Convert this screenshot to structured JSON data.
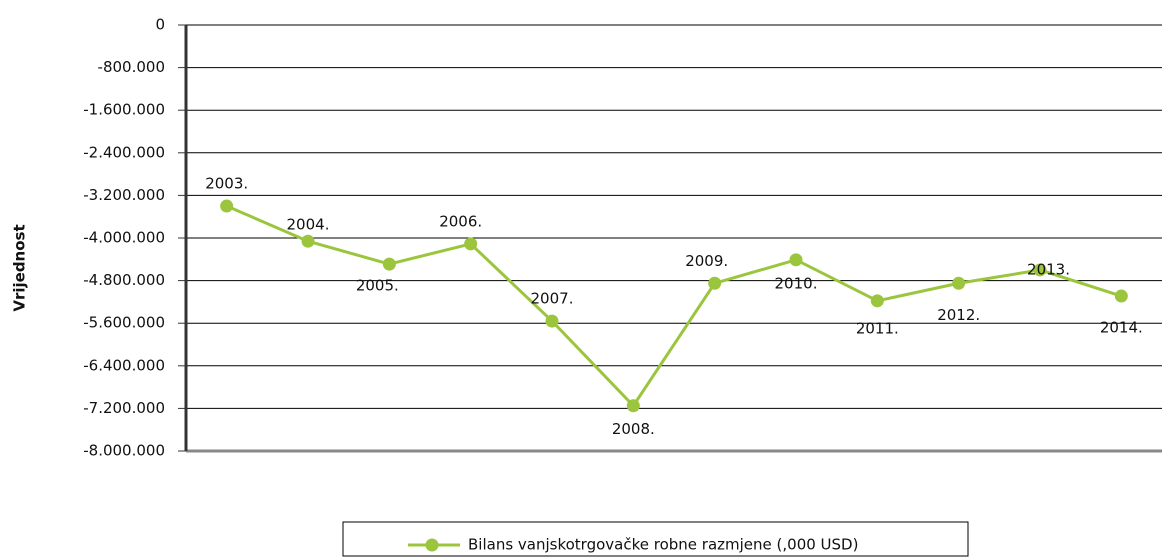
{
  "chart_data": {
    "type": "line",
    "y_axis_label": "Vrijednost",
    "categories": [
      "2003.",
      "2004.",
      "2005.",
      "2006.",
      "2007.",
      "2008.",
      "2009.",
      "2010.",
      "2011.",
      "2012.",
      "2013.",
      "2014."
    ],
    "series": [
      {
        "name": "Bilans vanjskotrgovačke robne razmjene (,000 USD)",
        "color": "#9bc53d",
        "values": [
          -3400000,
          -4060000,
          -4490000,
          -4110000,
          -5560000,
          -7150000,
          -4850000,
          -4410000,
          -5180000,
          -4850000,
          -4600000,
          -5090000
        ]
      }
    ],
    "ylim": [
      -8000000,
      0
    ],
    "yticks": [
      0,
      {
        "value": -800000,
        "label": "-800.000"
      },
      {
        "value": -1600000,
        "label": "-1.600.000"
      },
      {
        "value": -2400000,
        "label": "-2.400.000"
      },
      {
        "value": -3200000,
        "label": "-3.200.000"
      },
      {
        "value": -4000000,
        "label": "-4.000.000"
      },
      {
        "value": -4800000,
        "label": "-4.800.000"
      },
      {
        "value": -5600000,
        "label": "-5.600.000"
      },
      {
        "value": -6400000,
        "label": "-6.400.000"
      },
      {
        "value": -7200000,
        "label": "-7.200.000"
      },
      {
        "value": -8000000,
        "label": "-8.000.000"
      }
    ],
    "grid": true
  }
}
